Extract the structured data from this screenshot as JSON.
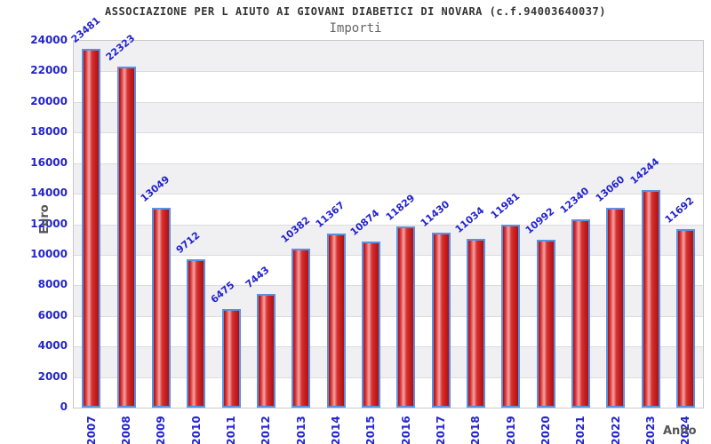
{
  "header": {
    "title": "ASSOCIAZIONE PER L AIUTO AI GIOVANI DIABETICI DI NOVARA (c.f.94003640037)",
    "subtitle": "Importi"
  },
  "chart_data": {
    "type": "bar",
    "title": "ASSOCIAZIONE PER L AIUTO AI GIOVANI DIABETICI DI NOVARA (c.f.94003640037)",
    "subtitle": "Importi",
    "xlabel": "Anno",
    "ylabel": "Euro",
    "categories": [
      "2007",
      "2008",
      "2009",
      "2010",
      "2011",
      "2012",
      "2013",
      "2014",
      "2015",
      "2016",
      "2017",
      "2018",
      "2019",
      "2020",
      "2021",
      "2022",
      "2023",
      "2024"
    ],
    "values": [
      23481,
      22323,
      13049,
      9712,
      6475,
      7443,
      10382,
      11367,
      10874,
      11829,
      11430,
      11034,
      11981,
      10992,
      12340,
      13060,
      14244,
      11692
    ],
    "ylim": [
      0,
      24000
    ],
    "ytick_step": 2000,
    "ytick_labels": [
      "0",
      "2000",
      "4000",
      "6000",
      "8000",
      "10000",
      "12000",
      "14000",
      "16000",
      "18000",
      "20000",
      "22000",
      "24000"
    ],
    "grid": "horizontal gridlines with alternating gray/white bands",
    "legend": "none",
    "bar_value_labels_rotated": true,
    "x_labels_rotated_90": true,
    "colors": {
      "title": "#333333",
      "subtitle": "#666666",
      "bluetext": "#2424cd",
      "axistitle": "#555555",
      "band": "#f0f0f3",
      "grid": "#dcdcdc",
      "plotborder": "#c9c9c9",
      "barborder": "#5b91e0",
      "bar_dark": "#ae0f0f",
      "bar_mid": "#d83030",
      "bar_light": "#f2a3a3"
    }
  }
}
